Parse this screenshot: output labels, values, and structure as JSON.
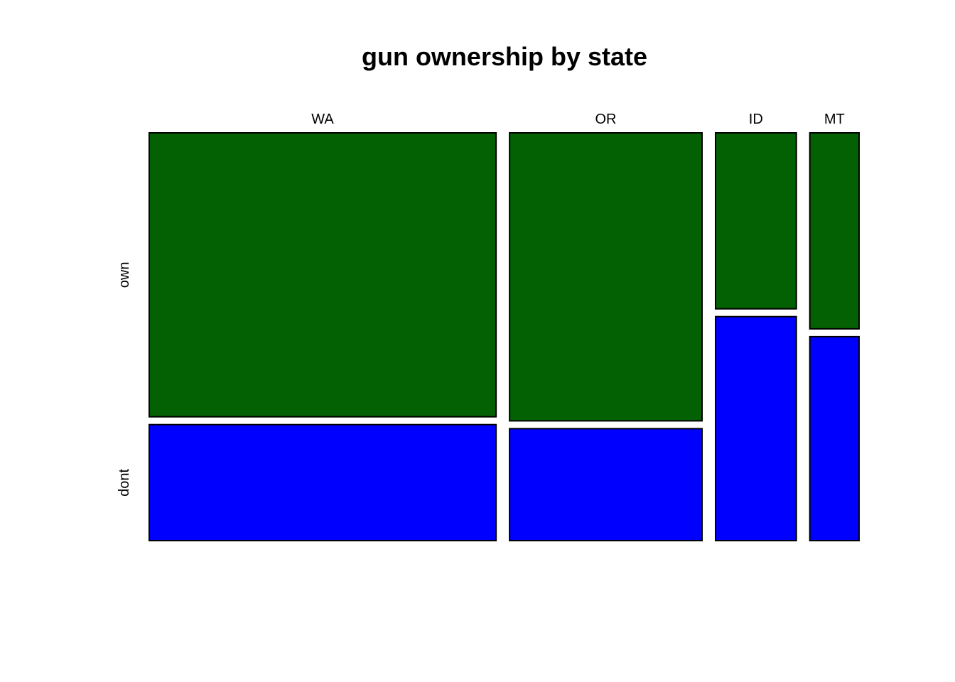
{
  "chart_data": {
    "type": "mosaic",
    "title": "gun ownership by state",
    "xlabel": "",
    "ylabel": "",
    "categories": [
      "WA",
      "OR",
      "ID",
      "MT"
    ],
    "category_totals": [
      1000,
      555,
      233,
      142
    ],
    "levels": [
      "own",
      "dont"
    ],
    "series": [
      {
        "name": "own",
        "color": "#036003",
        "share": [
          0.71,
          0.72,
          0.44,
          0.49
        ]
      },
      {
        "name": "dont",
        "color": "#0000ff",
        "share": [
          0.29,
          0.28,
          0.56,
          0.51
        ]
      }
    ],
    "grid": false,
    "legend": "none"
  }
}
